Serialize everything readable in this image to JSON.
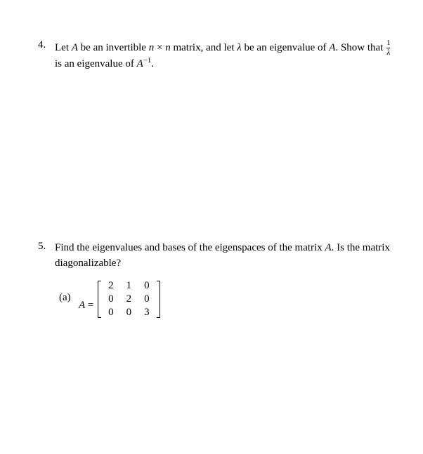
{
  "text_color": "#000000",
  "background_color": "#ffffff",
  "base_fontsize": 15,
  "problems": [
    {
      "number": "4.",
      "text_parts": {
        "p1": "Let ",
        "A1": "A",
        "p2": " be an invertible  ",
        "n1": "n",
        "times": " × ",
        "n2": "n",
        "p3": " matrix, and let ",
        "lambda": "λ",
        "p4": " be an eigenvalue of ",
        "A2": "A",
        "p5": ". Show that ",
        "frac_num": "1",
        "frac_den": "λ",
        "p6": "is an eigenvalue of ",
        "A3": "A",
        "exp": "−1",
        "p7": "."
      }
    },
    {
      "number": "5.",
      "text_parts": {
        "p1": "Find the eigenvalues and bases of the eigenspaces of the matrix ",
        "A1": "A",
        "p2": ". Is the matrix diagonalizable?"
      },
      "sub": {
        "label": "(a)",
        "lhs_A": "A",
        "lhs_eq": " = ",
        "matrix": {
          "rows": [
            [
              "2",
              "1",
              "0"
            ],
            [
              "0",
              "2",
              "0"
            ],
            [
              "0",
              "0",
              "3"
            ]
          ]
        }
      }
    }
  ]
}
